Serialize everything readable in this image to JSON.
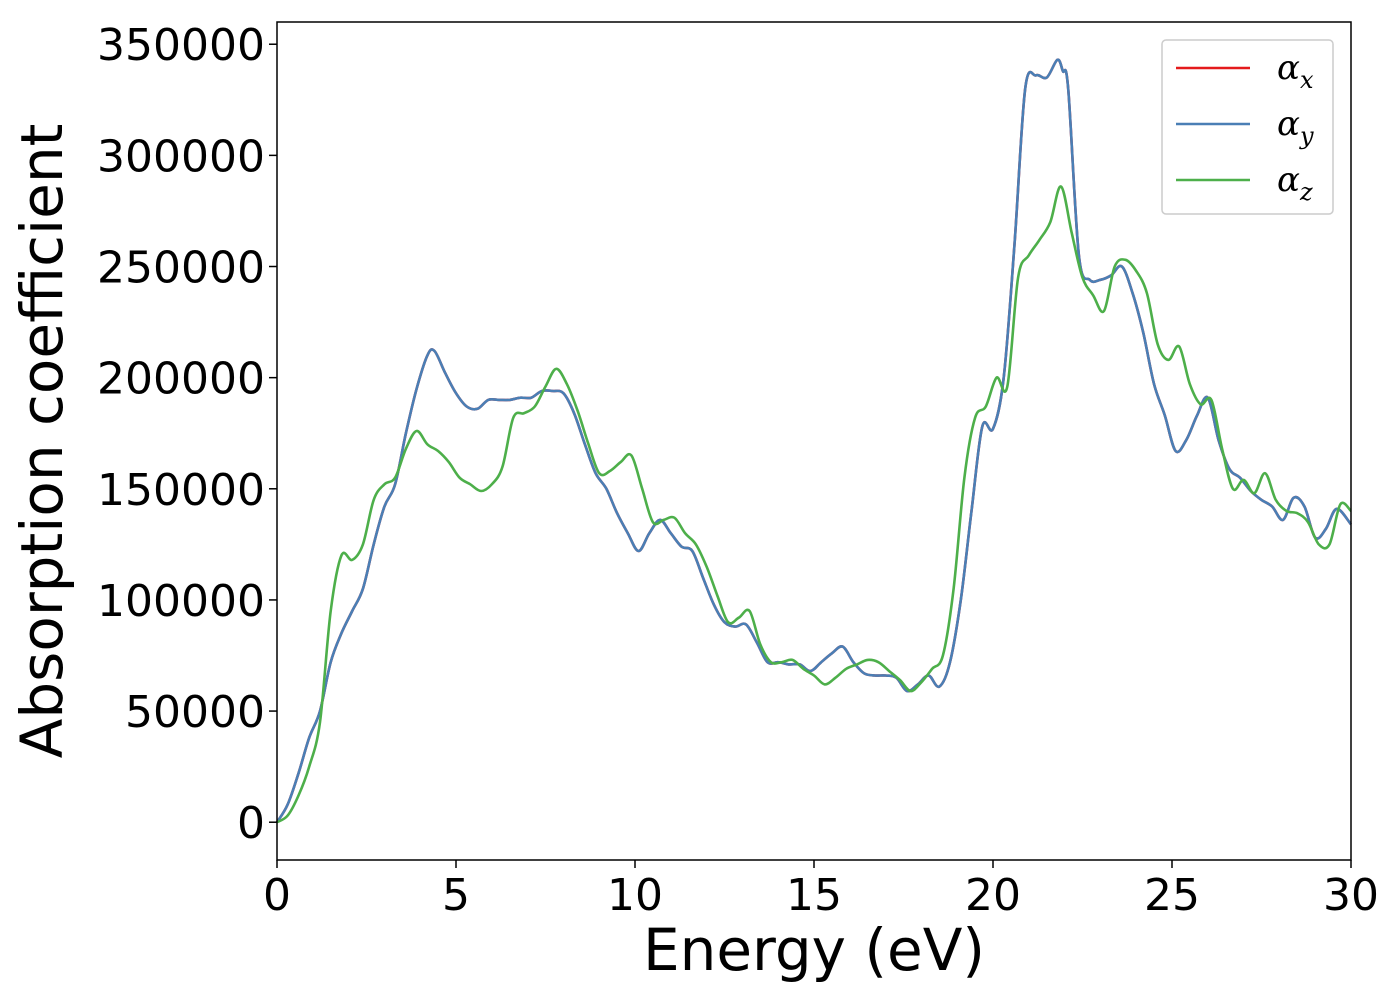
{
  "chart_data": {
    "type": "line",
    "xlabel": "Energy (eV)",
    "ylabel": "Absorption coefficient",
    "xlim": [
      0,
      30
    ],
    "ylim": [
      -17000,
      360000
    ],
    "xticks": [
      0,
      5,
      10,
      15,
      20,
      25,
      30
    ],
    "xtick_labels": [
      "0",
      "5",
      "10",
      "15",
      "20",
      "25",
      "30"
    ],
    "yticks": [
      0,
      50000,
      100000,
      150000,
      200000,
      250000,
      300000,
      350000
    ],
    "ytick_labels": [
      "0",
      "50000",
      "100000",
      "150000",
      "200000",
      "250000",
      "300000",
      "350000"
    ],
    "grid": false,
    "legend_position": "top-right",
    "series": [
      {
        "name": "α_x",
        "label_base": "α",
        "label_sub": "x",
        "color": "#e41a1c",
        "x": [
          0,
          0.3,
          0.6,
          0.9,
          1.2,
          1.5,
          1.8,
          2.1,
          2.4,
          2.7,
          3.0,
          3.3,
          3.6,
          3.9,
          4.2,
          4.4,
          4.7,
          5.0,
          5.3,
          5.6,
          5.9,
          6.2,
          6.5,
          6.8,
          7.1,
          7.4,
          7.7,
          8.0,
          8.3,
          8.6,
          8.9,
          9.2,
          9.5,
          9.8,
          10.1,
          10.4,
          10.7,
          11.0,
          11.3,
          11.6,
          11.9,
          12.2,
          12.5,
          12.8,
          13.1,
          13.4,
          13.7,
          14.0,
          14.3,
          14.6,
          14.9,
          15.2,
          15.5,
          15.8,
          16.1,
          16.4,
          16.7,
          17.0,
          17.3,
          17.6,
          17.9,
          18.2,
          18.5,
          18.8,
          19.1,
          19.4,
          19.7,
          20.0,
          20.3,
          20.6,
          20.9,
          21.2,
          21.5,
          21.8,
          21.95,
          22.1,
          22.4,
          22.7,
          23.0,
          23.3,
          23.6,
          23.9,
          24.2,
          24.5,
          24.8,
          25.1,
          25.4,
          25.7,
          26.0,
          26.3,
          26.6,
          26.9,
          27.2,
          27.5,
          27.8,
          28.1,
          28.4,
          28.7,
          29.0,
          29.3,
          29.6,
          30.0
        ],
        "y": [
          0,
          8000,
          22000,
          38000,
          50000,
          72000,
          85000,
          95000,
          105000,
          125000,
          142000,
          152000,
          175000,
          195000,
          210000,
          212000,
          202000,
          193000,
          187000,
          186000,
          190000,
          190000,
          190000,
          191000,
          191000,
          194000,
          194000,
          193000,
          184000,
          170000,
          157000,
          150000,
          139000,
          130000,
          122000,
          130000,
          136000,
          130000,
          124000,
          122000,
          110000,
          98000,
          90000,
          88000,
          89000,
          81000,
          72000,
          72000,
          71000,
          71000,
          68000,
          72000,
          76000,
          79000,
          72000,
          67000,
          66000,
          66000,
          65000,
          59000,
          62000,
          66000,
          61000,
          72000,
          100000,
          140000,
          178000,
          177000,
          200000,
          260000,
          330000,
          336000,
          335000,
          343000,
          338000,
          330000,
          255000,
          244000,
          244000,
          246000,
          250000,
          238000,
          220000,
          197000,
          183000,
          167000,
          172000,
          183000,
          191000,
          172000,
          159000,
          155000,
          149000,
          145000,
          142000,
          136000,
          146000,
          142000,
          128000,
          132000,
          141000,
          134000
        ]
      },
      {
        "name": "α_y",
        "label_base": "α",
        "label_sub": "y",
        "color": "#4a7fb5",
        "x": [
          0,
          0.3,
          0.6,
          0.9,
          1.2,
          1.5,
          1.8,
          2.1,
          2.4,
          2.7,
          3.0,
          3.3,
          3.6,
          3.9,
          4.2,
          4.4,
          4.7,
          5.0,
          5.3,
          5.6,
          5.9,
          6.2,
          6.5,
          6.8,
          7.1,
          7.4,
          7.7,
          8.0,
          8.3,
          8.6,
          8.9,
          9.2,
          9.5,
          9.8,
          10.1,
          10.4,
          10.7,
          11.0,
          11.3,
          11.6,
          11.9,
          12.2,
          12.5,
          12.8,
          13.1,
          13.4,
          13.7,
          14.0,
          14.3,
          14.6,
          14.9,
          15.2,
          15.5,
          15.8,
          16.1,
          16.4,
          16.7,
          17.0,
          17.3,
          17.6,
          17.9,
          18.2,
          18.5,
          18.8,
          19.1,
          19.4,
          19.7,
          20.0,
          20.3,
          20.6,
          20.9,
          21.2,
          21.5,
          21.8,
          21.95,
          22.1,
          22.4,
          22.7,
          23.0,
          23.3,
          23.6,
          23.9,
          24.2,
          24.5,
          24.8,
          25.1,
          25.4,
          25.7,
          26.0,
          26.3,
          26.6,
          26.9,
          27.2,
          27.5,
          27.8,
          28.1,
          28.4,
          28.7,
          29.0,
          29.3,
          29.6,
          30.0
        ],
        "y": [
          0,
          8000,
          22000,
          38000,
          50000,
          72000,
          85000,
          95000,
          105000,
          125000,
          142000,
          152000,
          175000,
          195000,
          210000,
          212000,
          202000,
          193000,
          187000,
          186000,
          190000,
          190000,
          190000,
          191000,
          191000,
          194000,
          194000,
          193000,
          184000,
          170000,
          157000,
          150000,
          139000,
          130000,
          122000,
          130000,
          136000,
          130000,
          124000,
          122000,
          110000,
          98000,
          90000,
          88000,
          89000,
          81000,
          72000,
          72000,
          71000,
          71000,
          68000,
          72000,
          76000,
          79000,
          72000,
          67000,
          66000,
          66000,
          65000,
          59000,
          62000,
          66000,
          61000,
          72000,
          100000,
          140000,
          178000,
          177000,
          200000,
          260000,
          330000,
          336000,
          335000,
          343000,
          338000,
          330000,
          255000,
          244000,
          244000,
          246000,
          250000,
          238000,
          220000,
          197000,
          183000,
          167000,
          172000,
          183000,
          191000,
          172000,
          159000,
          155000,
          149000,
          145000,
          142000,
          136000,
          146000,
          142000,
          128000,
          132000,
          141000,
          134000
        ]
      },
      {
        "name": "α_z",
        "label_base": "α",
        "label_sub": "z",
        "color": "#4daf4a",
        "x": [
          0,
          0.3,
          0.6,
          0.9,
          1.2,
          1.5,
          1.8,
          2.1,
          2.4,
          2.7,
          3.0,
          3.3,
          3.6,
          3.9,
          4.2,
          4.5,
          4.8,
          5.1,
          5.4,
          5.7,
          6.0,
          6.3,
          6.6,
          6.9,
          7.2,
          7.5,
          7.8,
          8.1,
          8.4,
          8.7,
          9.0,
          9.3,
          9.6,
          9.9,
          10.2,
          10.5,
          10.8,
          11.1,
          11.4,
          11.7,
          12.0,
          12.3,
          12.6,
          12.9,
          13.2,
          13.5,
          13.8,
          14.1,
          14.4,
          14.7,
          15.0,
          15.3,
          15.6,
          15.9,
          16.2,
          16.5,
          16.8,
          17.1,
          17.4,
          17.7,
          18.0,
          18.3,
          18.6,
          18.9,
          19.2,
          19.5,
          19.8,
          20.1,
          20.4,
          20.7,
          21.0,
          21.3,
          21.6,
          21.9,
          22.2,
          22.5,
          22.8,
          23.1,
          23.4,
          23.7,
          24.0,
          24.3,
          24.6,
          24.9,
          25.2,
          25.5,
          25.8,
          26.1,
          26.4,
          26.7,
          27.0,
          27.3,
          27.6,
          27.9,
          28.2,
          28.5,
          28.8,
          29.1,
          29.4,
          29.7,
          30.0
        ],
        "y": [
          0,
          3000,
          12000,
          25000,
          45000,
          95000,
          120000,
          118000,
          125000,
          145000,
          152000,
          155000,
          168000,
          176000,
          170000,
          167000,
          162000,
          155000,
          152000,
          149000,
          152000,
          160000,
          182000,
          184000,
          187000,
          196000,
          204000,
          197000,
          185000,
          170000,
          157000,
          158000,
          162000,
          165000,
          150000,
          135000,
          136000,
          137000,
          130000,
          125000,
          115000,
          102000,
          90000,
          92000,
          95000,
          80000,
          72000,
          72000,
          73000,
          69000,
          66000,
          62000,
          65000,
          69000,
          71000,
          73000,
          72000,
          68000,
          64000,
          59000,
          63000,
          69000,
          75000,
          105000,
          155000,
          182000,
          187000,
          200000,
          196000,
          245000,
          255000,
          262000,
          270000,
          286000,
          265000,
          245000,
          237000,
          230000,
          250000,
          253000,
          248000,
          238000,
          215000,
          208000,
          214000,
          197000,
          188000,
          190000,
          168000,
          150000,
          154000,
          148000,
          157000,
          145000,
          140000,
          139000,
          135000,
          125000,
          125000,
          143000,
          140000
        ]
      }
    ]
  }
}
